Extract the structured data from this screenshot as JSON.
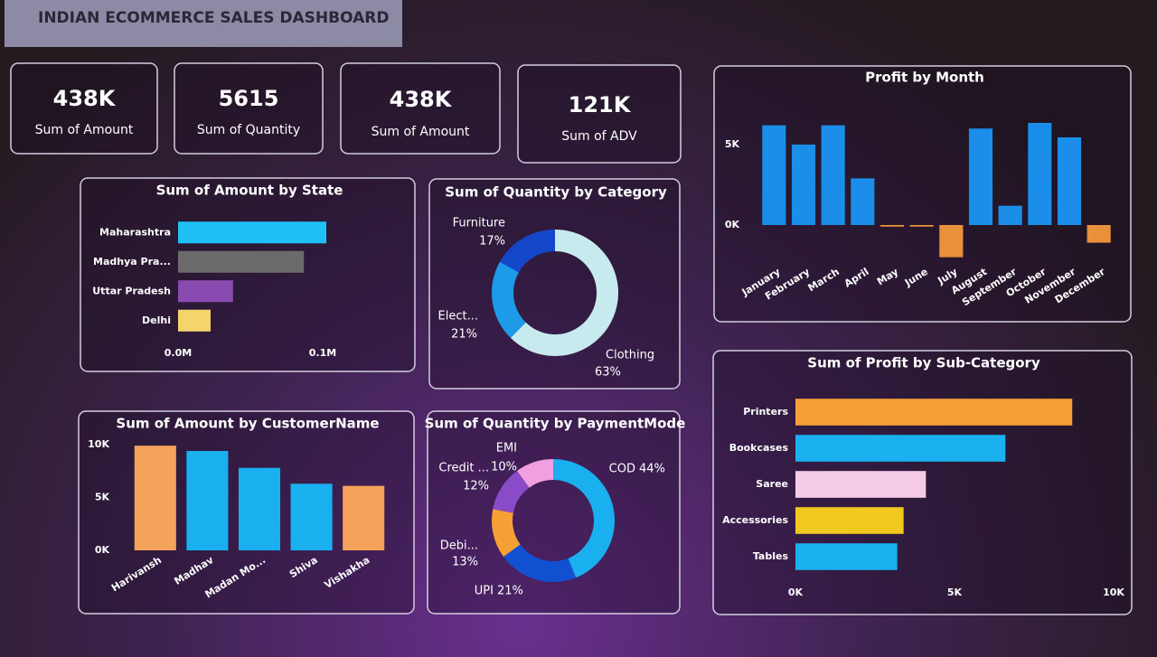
{
  "header": {
    "title": "INDIAN ECOMMERCE SALES DASHBOARD"
  },
  "kpis": [
    {
      "value": "438K",
      "label": "Sum of Amount"
    },
    {
      "value": "5615",
      "label": "Sum of Quantity"
    },
    {
      "value": "438K",
      "label": "Sum of Amount"
    },
    {
      "value": "121K",
      "label": "Sum of ADV"
    }
  ],
  "chart_data": [
    {
      "type": "bar",
      "orientation": "horizontal",
      "title": "Sum of Amount by State",
      "categories": [
        "Maharashtra",
        "Madhya Pra...",
        "Uttar Pradesh",
        "Delhi"
      ],
      "values": [
        102500,
        87000,
        38000,
        22500
      ],
      "colors": [
        "#1ec0f5",
        "#6b6b6b",
        "#8a4bb0",
        "#f5d56b"
      ],
      "xlim": [
        0,
        105000
      ],
      "xticks": [
        {
          "value": 0,
          "label": "0.0M"
        },
        {
          "value": 100000,
          "label": "0.1M"
        }
      ]
    },
    {
      "type": "donut",
      "title": "Sum of Quantity by Category",
      "categories": [
        "Clothing",
        "Elect...",
        "Furniture"
      ],
      "values": [
        63,
        21,
        17
      ],
      "value_labels": [
        "63%",
        "21%",
        "17%"
      ],
      "colors": [
        "#c6eaee",
        "#1e9be8",
        "#1346c8"
      ]
    },
    {
      "type": "bar",
      "title": "Profit by Month",
      "categories": [
        "January",
        "February",
        "March",
        "April",
        "May",
        "June",
        "July",
        "August",
        "September",
        "October",
        "November",
        "December"
      ],
      "values": [
        6200,
        5000,
        6200,
        2900,
        -100,
        -100,
        -2000,
        6000,
        1200,
        6350,
        5450,
        -1100
      ],
      "color": "#1a8ee8",
      "negative_color": "#e8913a",
      "ylim": [
        -2500,
        7500
      ],
      "yticks": [
        {
          "value": 0,
          "label": "0K"
        },
        {
          "value": 5000,
          "label": "5K"
        }
      ]
    },
    {
      "type": "bar",
      "title": "Sum of Amount by CustomerName",
      "categories": [
        "Harivansh",
        "Madhav",
        "Madan Mo...",
        "Shiva",
        "Vishakha"
      ],
      "values": [
        9900,
        9400,
        7800,
        6300,
        6100
      ],
      "colors": [
        "#f5a35a",
        "#1ab0f0",
        "#1ab0f0",
        "#1ab0f0",
        "#f5a35a"
      ],
      "ylim": [
        0,
        10000
      ],
      "yticks": [
        {
          "value": 0,
          "label": "0K"
        },
        {
          "value": 5000,
          "label": "5K"
        },
        {
          "value": 10000,
          "label": "10K"
        }
      ]
    },
    {
      "type": "donut",
      "title": "Sum of Quantity by PaymentMode",
      "categories": [
        "COD",
        "UPI",
        "Debi...",
        "Credit ...",
        "EMI"
      ],
      "values": [
        44,
        21,
        13,
        12,
        10
      ],
      "value_labels": [
        "44%",
        "21%",
        "13%",
        "12%",
        "10%"
      ],
      "colors": [
        "#1ab0f0",
        "#1150d0",
        "#f5a035",
        "#8a4bc8",
        "#f0a0e0"
      ]
    },
    {
      "type": "bar",
      "orientation": "horizontal",
      "title": "Sum of Profit by Sub-Category",
      "categories": [
        "Printers",
        "Bookcases",
        "Saree",
        "Accessories",
        "Tables"
      ],
      "values": [
        8700,
        6600,
        4100,
        3400,
        3200
      ],
      "colors": [
        "#f5a035",
        "#1ab0f0",
        "#f5cce8",
        "#f0c81e",
        "#1ab0f0"
      ],
      "xlim": [
        0,
        10000
      ],
      "xticks": [
        {
          "value": 0,
          "label": "0K"
        },
        {
          "value": 5000,
          "label": "5K"
        },
        {
          "value": 10000,
          "label": "10K"
        }
      ]
    }
  ]
}
